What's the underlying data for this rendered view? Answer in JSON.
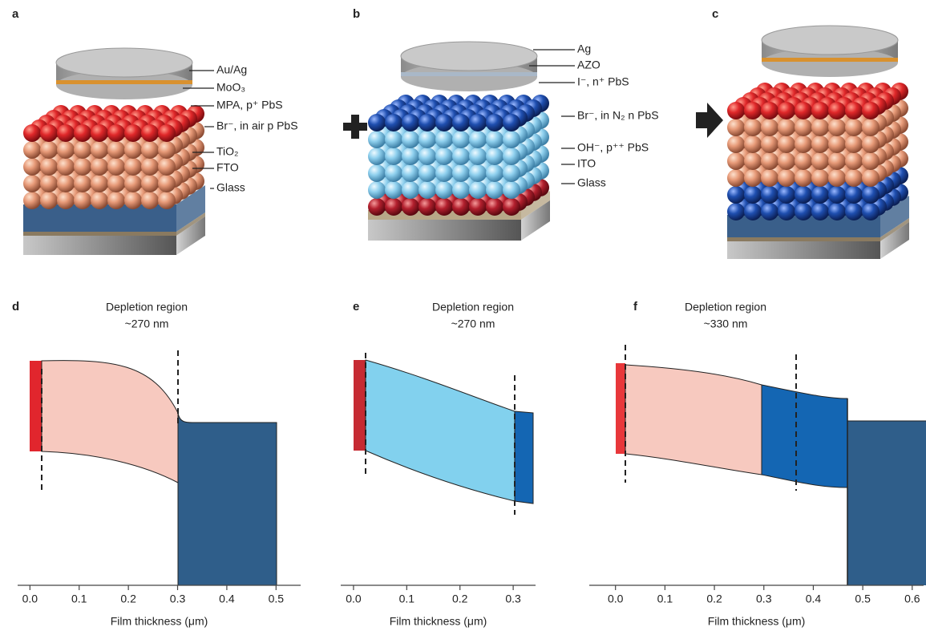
{
  "schematics": [
    {
      "label": "a",
      "layers": [
        "Au/Ag",
        "MoO₃",
        "MPA, p⁺ PbS",
        "Br⁻, in air p PbS",
        "TiO₂",
        "FTO",
        "Glass"
      ]
    },
    {
      "label": "b",
      "layers": [
        "Ag",
        "AZO",
        "I⁻, n⁺ PbS",
        "Br⁻, in N₂ n PbS",
        "OH⁻, p⁺⁺ PbS",
        "ITO",
        "Glass"
      ]
    },
    {
      "label": "c"
    }
  ],
  "band_diagrams": [
    {
      "label": "d",
      "title": "Depletion region",
      "subtitle": "~270 nm",
      "xlabel": "Film thickness (μm)",
      "xlim": [
        -0.025,
        0.55
      ],
      "xticks": [
        {
          "value": 0,
          "label": "0.0"
        },
        0.1,
        0.2,
        0.3,
        0.4,
        0.5
      ]
    },
    {
      "label": "e",
      "title": "Depletion region",
      "subtitle": "~270 nm",
      "xlabel": "Film thickness (μm)",
      "xlim": [
        -0.024,
        0.342
      ],
      "xticks": [
        {
          "value": 0,
          "label": "0.0"
        },
        0.1,
        0.2,
        0.3
      ]
    },
    {
      "label": "f",
      "title": "Depletion region",
      "subtitle": "~330 nm",
      "xlabel": "Film thickness (μm)",
      "xlim": [
        -0.053,
        0.623
      ],
      "xticks": [
        {
          "value": 0,
          "label": "0.0"
        },
        0.1,
        0.2,
        0.3,
        0.4,
        0.5,
        0.6
      ]
    }
  ]
}
